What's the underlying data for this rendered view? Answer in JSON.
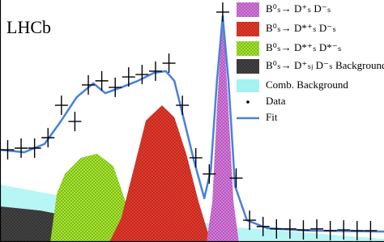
{
  "chart_data": {
    "type": "line",
    "annotation": "LHCb",
    "xlim": [
      0,
      100
    ],
    "ylim": [
      0,
      100
    ],
    "series": [
      {
        "name": "B⁰ₛ→ D⁺ₛ D⁻ₛ",
        "kind": "area",
        "color": "#e07ae8",
        "x": [
          53.8,
          55.3,
          56.5,
          58.0,
          59.5,
          60.8,
          62.2
        ],
        "values": [
          0,
          16.7,
          55.2,
          95.0,
          55.2,
          16.7,
          0
        ]
      },
      {
        "name": "B⁰ₛ→ D*⁺ₛ D⁻ₛ",
        "kind": "area",
        "color": "#ef3a2c",
        "x": [
          28.5,
          31.6,
          34.8,
          38.0,
          42.2,
          45.4,
          48.5,
          51.7,
          54.9
        ],
        "values": [
          0,
          10.0,
          30.1,
          50.2,
          56.5,
          51.5,
          36.5,
          16.7,
          0
        ]
      },
      {
        "name": "B⁰ₛ→ D*⁺ₛ D*⁻ₛ",
        "kind": "area",
        "color": "#a8ee2c",
        "x": [
          13.1,
          14.8,
          16.9,
          21.1,
          25.3,
          29.5,
          31.6,
          33.8,
          36.9
        ],
        "values": [
          0,
          20.1,
          28.1,
          34.8,
          36.5,
          31.4,
          21.7,
          11.4,
          0
        ]
      },
      {
        "name": "B⁰ₛ→ D⁺ₛⱼ D⁻ₛ Background",
        "kind": "area",
        "color": "#444444",
        "x": [
          0,
          10.5,
          21.1,
          31.6,
          42.2,
          52.7
        ],
        "values": [
          14.7,
          13.0,
          9.7,
          6.4,
          3.0,
          0
        ]
      },
      {
        "name": "Comb. Background",
        "kind": "band",
        "color": "#a6f2f2",
        "x": [
          0,
          59.1,
          100
        ],
        "values": [
          23.7,
          6.4,
          1.3
        ]
      },
      {
        "name": "Data",
        "kind": "errorbar",
        "color": "#000000",
        "x": [
          2,
          5.5,
          9,
          12.5,
          16,
          19.5,
          23,
          26.5,
          30,
          33.5,
          37,
          40.5,
          44,
          47.5,
          51,
          54.5,
          58,
          61.5,
          65,
          68.5,
          72,
          75.5,
          79,
          82.5,
          86,
          89.5,
          93,
          96.5
        ],
        "values": [
          38.1,
          38.8,
          38.8,
          43.1,
          56.5,
          49.8,
          64.9,
          66.6,
          63.9,
          68.2,
          69.2,
          70.6,
          73.9,
          56.5,
          34.8,
          28.1,
          95.0,
          26.4,
          9.0,
          6.4,
          5.4,
          5.4,
          5.0,
          5.4,
          4.7,
          5.0,
          4.7,
          4.7
        ],
        "errors": [
          4,
          4,
          4,
          4,
          4,
          4,
          4,
          4,
          4,
          4,
          4,
          4,
          4,
          4,
          4,
          4,
          4,
          4,
          4,
          4,
          4,
          4,
          4,
          4,
          4,
          4,
          4,
          4
        ]
      },
      {
        "name": "Fit",
        "kind": "line",
        "color": "#4a80dc",
        "x": [
          0,
          6.3,
          11.6,
          15.8,
          20.0,
          24.3,
          27.4,
          31.6,
          35.9,
          40.1,
          43.2,
          45.4,
          47.5,
          50.6,
          53.2,
          54.9,
          56.5,
          58.0,
          59.5,
          61.2,
          64.3,
          69.6,
          80.2,
          100
        ],
        "values": [
          38.1,
          37.1,
          40.5,
          49.8,
          59.9,
          65.6,
          61.5,
          63.9,
          66.6,
          69.9,
          70.6,
          66.6,
          53.2,
          33.1,
          18.1,
          29.8,
          66.6,
          93.3,
          66.6,
          23.1,
          9.0,
          5.7,
          4.7,
          4.3
        ]
      }
    ]
  }
}
